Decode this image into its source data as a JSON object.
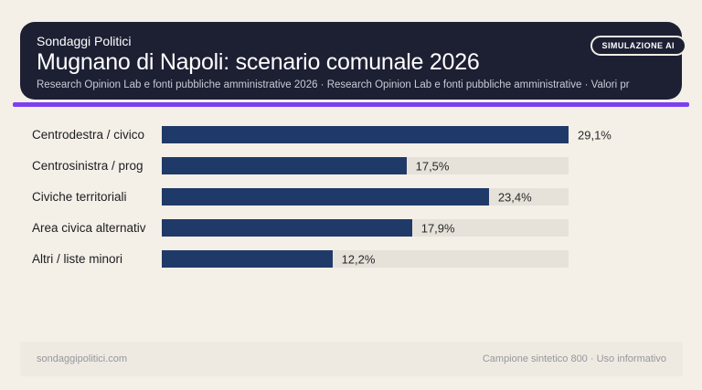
{
  "badge": {
    "label": "SIMULAZIONE AI"
  },
  "header": {
    "brand": "Sondaggi Politici",
    "title": "Mugnano di Napoli: scenario comunale 2026",
    "subtitle": "Research Opinion Lab e fonti pubbliche amministrative 2026 · Research Opinion Lab e fonti pubbliche amministrative · Valori pr"
  },
  "chart_data": {
    "type": "bar",
    "orientation": "horizontal",
    "categories": [
      "Centrodestra / civico",
      "Centrosinistra / prog",
      "Civiche territoriali",
      "Area civica alternativ",
      "Altri / liste minori"
    ],
    "values": [
      29.1,
      17.5,
      23.4,
      17.9,
      12.2
    ],
    "value_labels": [
      "29,1%",
      "17,5%",
      "23,4%",
      "17,9%",
      "12,2%"
    ],
    "xlim": [
      0,
      29.1
    ],
    "grid": false,
    "legend": "none",
    "colors": {
      "bar": "#1f3a68",
      "track": "#e6e2da",
      "accent": "#7b3ff2",
      "panel_background": "#1d2033",
      "page_background": "#f4efe7"
    }
  },
  "footer": {
    "left": "sondaggipolitici.com",
    "right": "Campione sintetico 800 · Uso informativo"
  }
}
